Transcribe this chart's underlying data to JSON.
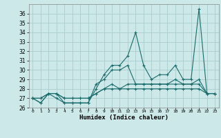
{
  "title": "",
  "xlabel": "Humidex (Indice chaleur)",
  "x": [
    0,
    1,
    2,
    3,
    4,
    5,
    6,
    7,
    8,
    9,
    10,
    11,
    12,
    13,
    14,
    15,
    16,
    17,
    18,
    19,
    20,
    21,
    22,
    23
  ],
  "line1": [
    27,
    26.5,
    27.5,
    27,
    26.5,
    26.5,
    26.5,
    26.5,
    28,
    29.5,
    30.5,
    30.5,
    31.5,
    34,
    30.5,
    29,
    29.5,
    29.5,
    30.5,
    29,
    29,
    36.5,
    27.5,
    27.5
  ],
  "line2": [
    27,
    26.5,
    27.5,
    27.5,
    26.5,
    26.5,
    26.5,
    26.5,
    28.5,
    29,
    30,
    30,
    30.5,
    28.5,
    28.5,
    28.5,
    28.5,
    28.5,
    29,
    28.5,
    28.5,
    29,
    27.5,
    27.5
  ],
  "line3": [
    27,
    27,
    27.5,
    27.5,
    27,
    27,
    27,
    27,
    27.5,
    28,
    28.5,
    28,
    28.5,
    28.5,
    28.5,
    28.5,
    28.5,
    28.5,
    28.5,
    28.5,
    28.5,
    28.5,
    27.5,
    27.5
  ],
  "line4": [
    27,
    27,
    27.5,
    27.5,
    27,
    27,
    27,
    27,
    27.5,
    28,
    28,
    28,
    28,
    28,
    28,
    28,
    28,
    28,
    28,
    28,
    28,
    28,
    27.5,
    27.5
  ],
  "bg_color": "#cce8e8",
  "grid_color": "#aacccc",
  "line_color": "#1a6b6b",
  "ylim_min": 26,
  "ylim_max": 37,
  "yticks": [
    26,
    27,
    28,
    29,
    30,
    31,
    32,
    33,
    34,
    35,
    36
  ],
  "marker": "+"
}
